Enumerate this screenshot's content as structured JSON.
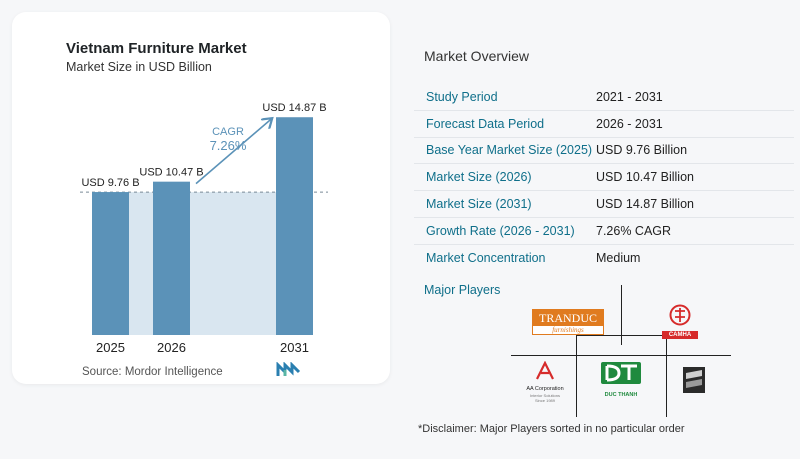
{
  "chart_data": {
    "type": "bar",
    "title": "Vietnam Furniture Market",
    "subtitle": "Market Size in USD Billion",
    "categories": [
      "2025",
      "2026",
      "2031"
    ],
    "values": [
      9.76,
      10.47,
      14.87
    ],
    "value_labels": [
      "USD 9.76 B",
      "USD 10.47 B",
      "USD 14.87 B"
    ],
    "cagr_label": "CAGR",
    "cagr_value": "7.26%",
    "ylim": [
      0,
      15.5
    ],
    "bar_color": "#5b92b8",
    "base_band_color": "#d9e6f0",
    "grid": false
  },
  "source": "Source:  Mordor Intelligence",
  "overview": {
    "title": "Market Overview",
    "rows": [
      {
        "label": "Study Period",
        "value": "2021 - 2031"
      },
      {
        "label": "Forecast Data Period",
        "value": "2026 - 2031"
      },
      {
        "label": "Base Year Market Size (2025)",
        "value": "USD 9.76 Billion"
      },
      {
        "label": "Market Size (2026)",
        "value": "USD 10.47 Billion"
      },
      {
        "label": "Market Size (2031)",
        "value": "USD 14.87 Billion"
      },
      {
        "label": "Growth Rate (2026 - 2031)",
        "value": "7.26% CAGR"
      },
      {
        "label": "Market Concentration",
        "value": "Medium"
      }
    ]
  },
  "players": {
    "title": "Major Players",
    "logos": [
      {
        "name": "tranduc-logo",
        "text": "TRANDUC",
        "subtext": "furnishings",
        "color": "#e07b1f"
      },
      {
        "name": "camha-logo",
        "text": "CAMHA",
        "color": "#d62b2b"
      },
      {
        "name": "aa-corporation-logo",
        "text": "AA Corporation",
        "subtext": "Interior Solutions Since 1989",
        "color": "#d62b2b"
      },
      {
        "name": "duc-thanh-logo",
        "text": "DUC THANH",
        "color": "#1f8a3e"
      },
      {
        "name": "player-five-logo",
        "color": "#333333"
      }
    ]
  },
  "disclaimer": "*Disclaimer: Major Players sorted in no particular order"
}
